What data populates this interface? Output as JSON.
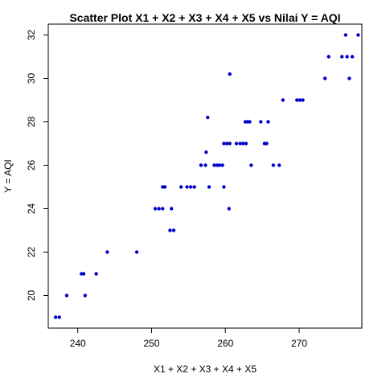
{
  "chart_data": {
    "type": "scatter",
    "title": "Scatter Plot X1 + X2 + X3 + X4 + X5 vs Nilai Y = AQI",
    "xlabel": "X1 + X2 + X3 + X4 + X5",
    "ylabel": "Y = AQI",
    "xlim": [
      236,
      278.5
    ],
    "ylim": [
      18.5,
      32.5
    ],
    "xticks": [
      240,
      250,
      260,
      270
    ],
    "yticks": [
      20,
      22,
      24,
      26,
      28,
      30,
      32
    ],
    "grid": false,
    "point_color": "#0000cd",
    "points": [
      {
        "x": 237.0,
        "y": 19
      },
      {
        "x": 237.5,
        "y": 19
      },
      {
        "x": 238.5,
        "y": 20
      },
      {
        "x": 241.0,
        "y": 20
      },
      {
        "x": 240.5,
        "y": 21
      },
      {
        "x": 240.8,
        "y": 21
      },
      {
        "x": 242.5,
        "y": 21
      },
      {
        "x": 244.0,
        "y": 22
      },
      {
        "x": 248.0,
        "y": 22
      },
      {
        "x": 252.5,
        "y": 23
      },
      {
        "x": 253.0,
        "y": 23
      },
      {
        "x": 250.5,
        "y": 24
      },
      {
        "x": 251.0,
        "y": 24
      },
      {
        "x": 251.5,
        "y": 24
      },
      {
        "x": 252.7,
        "y": 24
      },
      {
        "x": 260.5,
        "y": 24
      },
      {
        "x": 251.5,
        "y": 25
      },
      {
        "x": 251.8,
        "y": 25
      },
      {
        "x": 254.0,
        "y": 25
      },
      {
        "x": 254.8,
        "y": 25
      },
      {
        "x": 255.3,
        "y": 25
      },
      {
        "x": 255.8,
        "y": 25
      },
      {
        "x": 257.8,
        "y": 25
      },
      {
        "x": 259.8,
        "y": 25
      },
      {
        "x": 256.7,
        "y": 26
      },
      {
        "x": 257.3,
        "y": 26
      },
      {
        "x": 258.5,
        "y": 26
      },
      {
        "x": 258.9,
        "y": 26
      },
      {
        "x": 259.2,
        "y": 26
      },
      {
        "x": 259.6,
        "y": 26
      },
      {
        "x": 263.5,
        "y": 26
      },
      {
        "x": 266.5,
        "y": 26
      },
      {
        "x": 267.3,
        "y": 26
      },
      {
        "x": 257.4,
        "y": 26.6
      },
      {
        "x": 259.8,
        "y": 27
      },
      {
        "x": 260.2,
        "y": 27
      },
      {
        "x": 260.6,
        "y": 27
      },
      {
        "x": 261.5,
        "y": 27
      },
      {
        "x": 262.0,
        "y": 27
      },
      {
        "x": 262.4,
        "y": 27
      },
      {
        "x": 262.8,
        "y": 27
      },
      {
        "x": 265.3,
        "y": 27
      },
      {
        "x": 265.6,
        "y": 27
      },
      {
        "x": 262.7,
        "y": 28
      },
      {
        "x": 263.0,
        "y": 28
      },
      {
        "x": 263.3,
        "y": 28
      },
      {
        "x": 264.8,
        "y": 28
      },
      {
        "x": 265.8,
        "y": 28
      },
      {
        "x": 257.6,
        "y": 28.2
      },
      {
        "x": 267.8,
        "y": 29
      },
      {
        "x": 269.7,
        "y": 29
      },
      {
        "x": 270.1,
        "y": 29
      },
      {
        "x": 270.5,
        "y": 29
      },
      {
        "x": 273.5,
        "y": 30
      },
      {
        "x": 276.8,
        "y": 30
      },
      {
        "x": 260.6,
        "y": 30.2
      },
      {
        "x": 274.0,
        "y": 31
      },
      {
        "x": 275.8,
        "y": 31
      },
      {
        "x": 276.5,
        "y": 31
      },
      {
        "x": 277.2,
        "y": 31
      },
      {
        "x": 276.3,
        "y": 32
      },
      {
        "x": 278.0,
        "y": 32
      }
    ]
  }
}
